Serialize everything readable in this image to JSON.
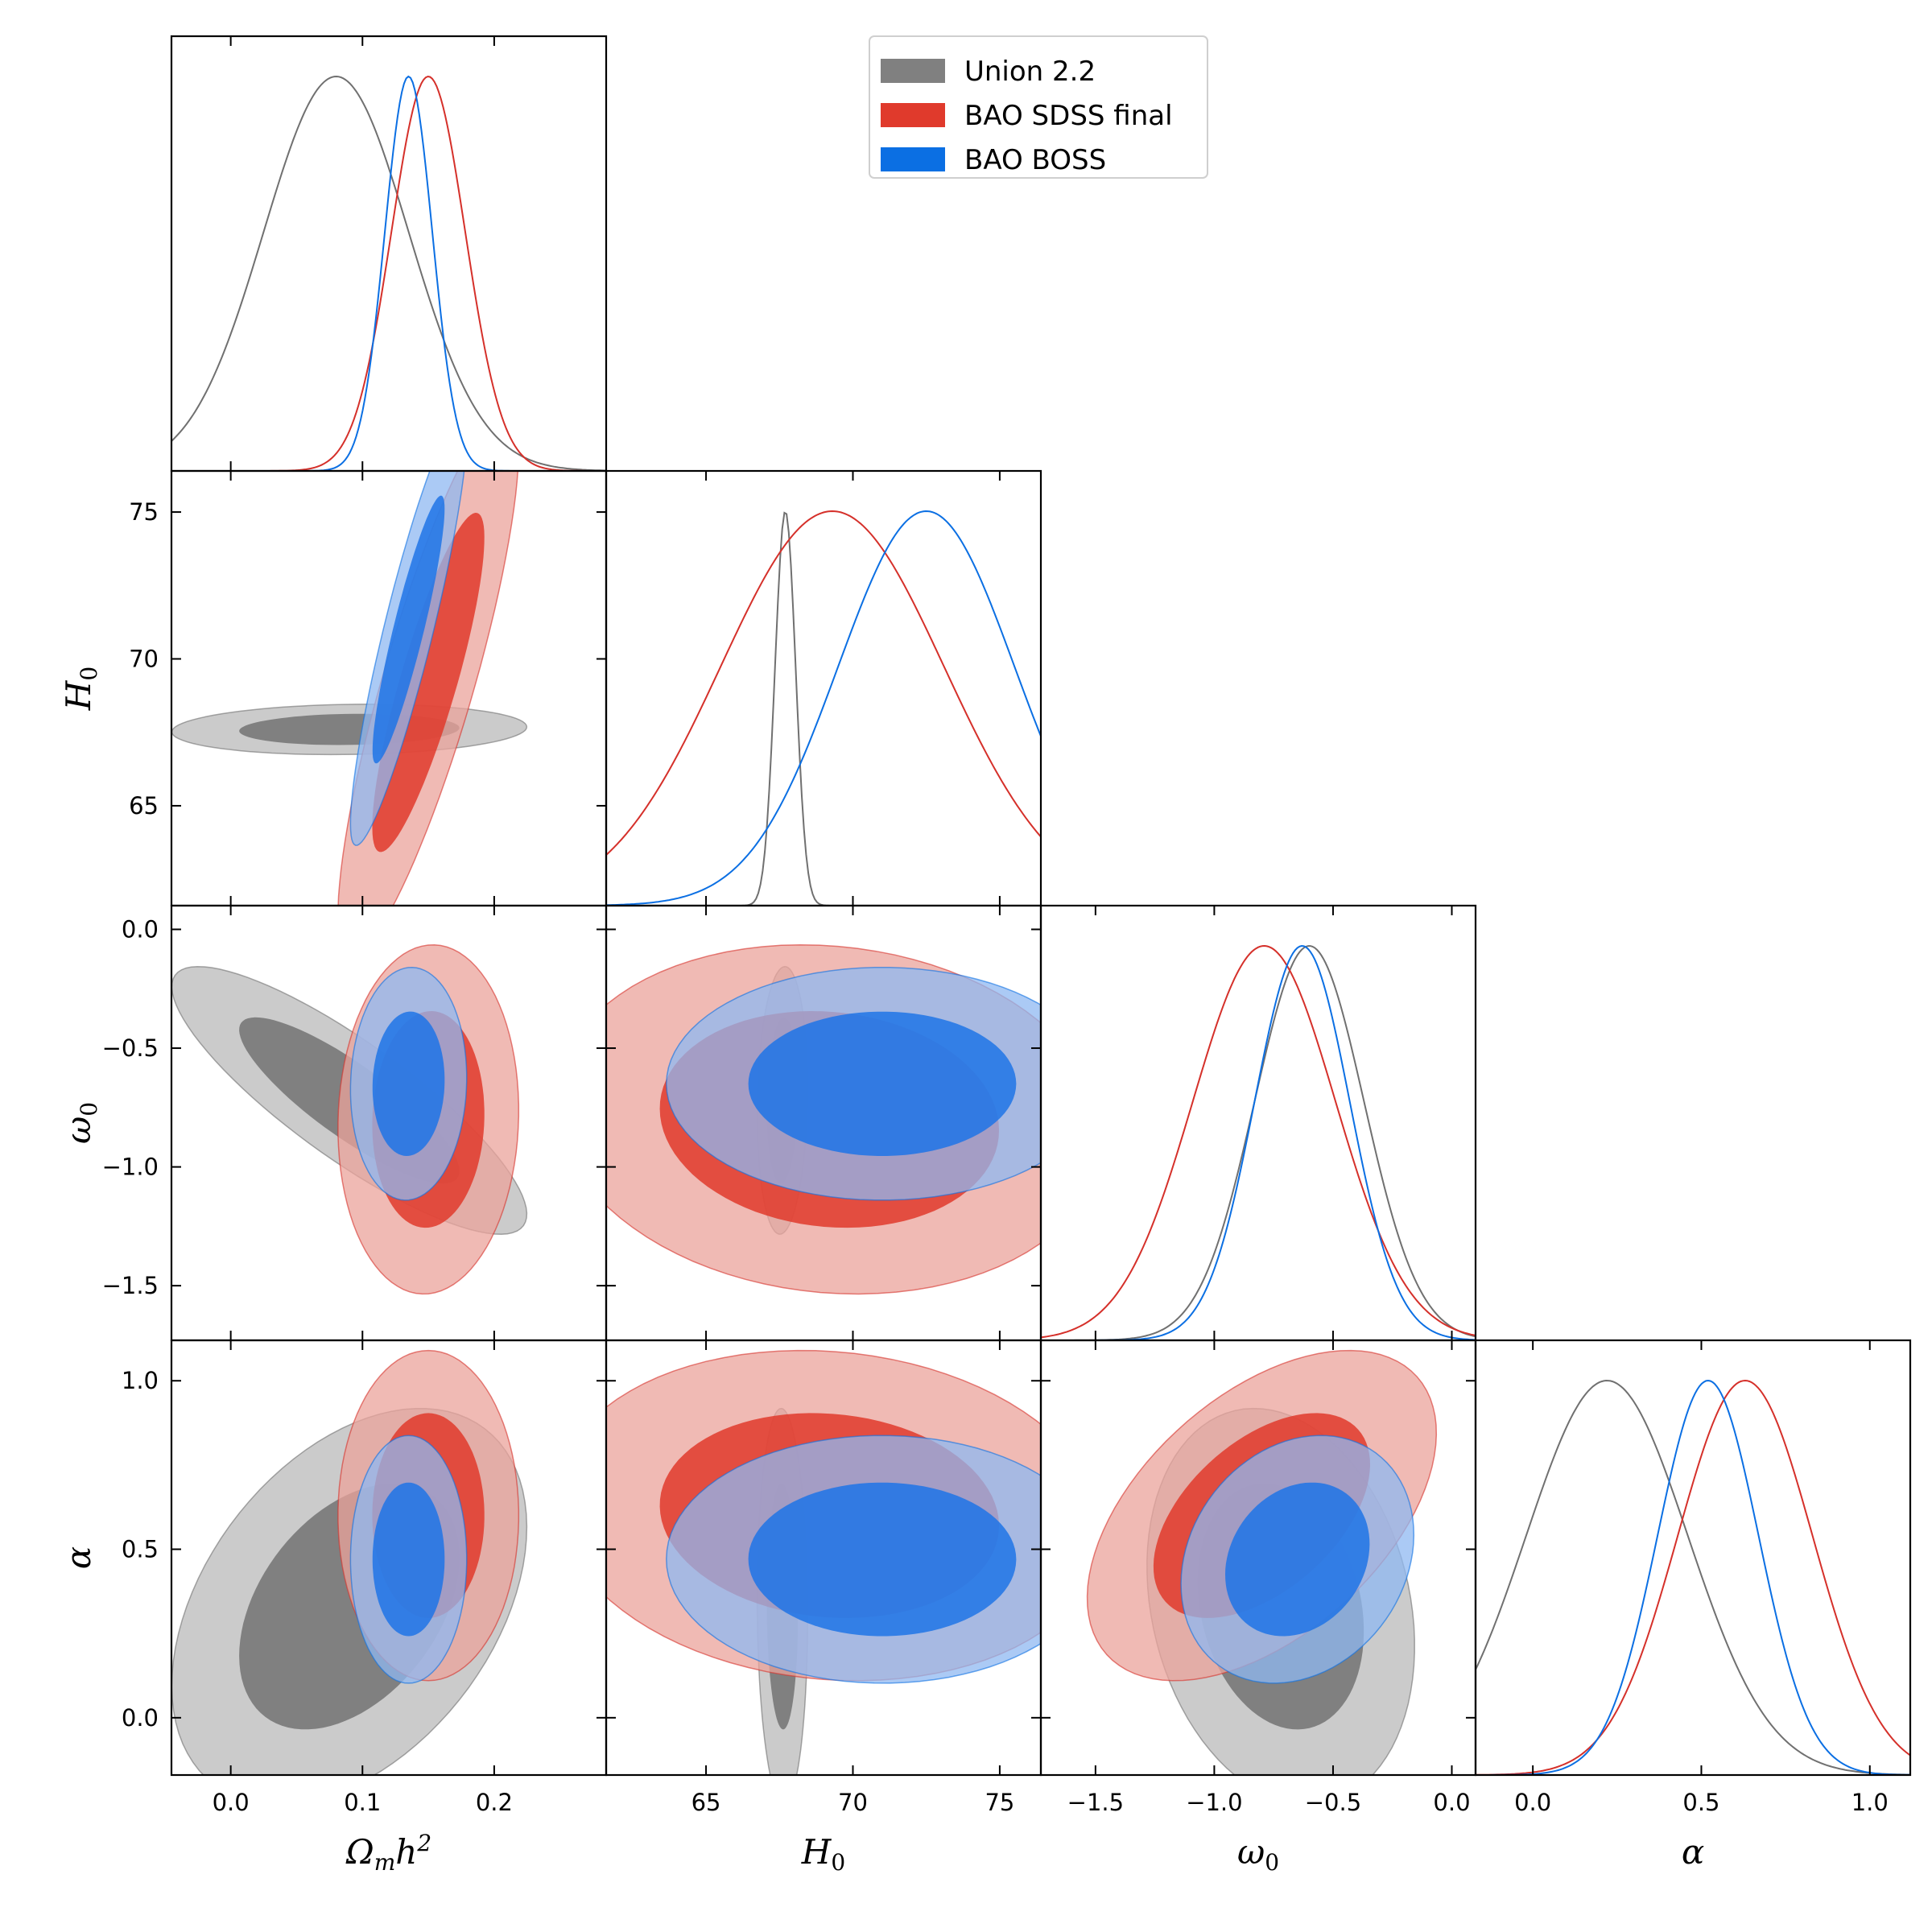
{
  "chart_data": {
    "type": "corner",
    "parameters": [
      {
        "key": "omh2",
        "label_html": "Ω<tspan font-size='28' dy='8'>m</tspan><tspan dy='-8'>h</tspan><tspan font-size='28' dy='-16'>2</tspan>",
        "label_text": "Ωmh2",
        "range": [
          -0.045,
          0.285
        ],
        "ticks": [
          0.0,
          0.1,
          0.2
        ],
        "tick_labels": [
          "0.0",
          "0.1",
          "0.2"
        ]
      },
      {
        "key": "H0",
        "label_text": "H0",
        "range": [
          61.6,
          76.4
        ],
        "ticks": [
          65,
          70,
          75
        ],
        "tick_labels": [
          "65",
          "70",
          "75"
        ]
      },
      {
        "key": "w0",
        "label_text": "ω0",
        "range": [
          -1.73,
          0.1
        ],
        "ticks": [
          -1.5,
          -1.0,
          -0.5,
          0.0
        ],
        "tick_labels": [
          "−1.5",
          "−1.0",
          "−0.5",
          "0.0"
        ]
      },
      {
        "key": "alpha",
        "label_text": "α",
        "range": [
          -0.17,
          1.12
        ],
        "ticks": [
          0.0,
          0.5,
          1.0
        ],
        "tick_labels": [
          "0.0",
          "0.5",
          "1.0"
        ]
      }
    ],
    "legend": [
      {
        "name": "Union 2.2",
        "color": "#808080"
      },
      {
        "name": "BAO SDSS final",
        "color": "#e03a2c"
      },
      {
        "name": "BAO BOSS",
        "color": "#0b6fe3"
      }
    ],
    "legend_location": "top-center",
    "series": [
      {
        "name": "Union 2.2",
        "line": "#707070",
        "inner": "#808080",
        "outer": "#cbcbcb",
        "outer_alpha": 1.0,
        "inner_alpha": 1.0,
        "means": {
          "omh2": 0.09,
          "H0": 67.6,
          "w0": -0.72,
          "alpha": 0.33
        },
        "sigmas": {
          "omh2": 0.055,
          "H0": 0.35,
          "w0": 0.23,
          "alpha": 0.24
        },
        "corr": {
          "omh2|H0": 0.1,
          "omh2|w0": -0.85,
          "omh2|alpha": 0.4,
          "H0|w0": 0.1,
          "H0|alpha": -0.05,
          "w0|alpha": -0.2
        }
      },
      {
        "name": "BAO SDSS final",
        "line": "#d5302a",
        "inner": "#e03a2c",
        "outer": "#eba39b",
        "outer_alpha": 0.75,
        "inner_alpha": 0.85,
        "means": {
          "omh2": 0.15,
          "H0": 69.2,
          "w0": -0.8,
          "alpha": 0.6
        },
        "sigmas": {
          "omh2": 0.028,
          "H0": 3.8,
          "w0": 0.3,
          "alpha": 0.2
        },
        "corr": {
          "omh2|H0": 0.85,
          "omh2|w0": 0.05,
          "omh2|alpha": 0.0,
          "H0|w0": -0.1,
          "H0|alpha": -0.1,
          "w0|alpha": 0.5
        }
      },
      {
        "name": "BAO BOSS",
        "line": "#0b6fe3",
        "inner": "#1f74e6",
        "outer": "#8fb8f2",
        "outer_alpha": 0.75,
        "inner_alpha": 0.85,
        "means": {
          "omh2": 0.135,
          "H0": 71.0,
          "w0": -0.65,
          "alpha": 0.47
        },
        "sigmas": {
          "omh2": 0.018,
          "H0": 3.0,
          "w0": 0.2,
          "alpha": 0.15
        },
        "corr": {
          "omh2|H0": 0.9,
          "omh2|w0": 0.05,
          "omh2|alpha": 0.0,
          "H0|w0": 0.0,
          "H0|alpha": 0.0,
          "w0|alpha": 0.2
        }
      }
    ],
    "marginal_peaks": {
      "omh2": {
        "Union 2.2": 0.08,
        "BAO SDSS final": 0.15,
        "BAO BOSS": 0.135
      },
      "H0": {
        "Union 2.2": 67.7,
        "BAO SDSS final": 69.3,
        "BAO BOSS": 72.5
      },
      "w0": {
        "Union 2.2": -0.6,
        "BAO SDSS final": -0.79,
        "BAO BOSS": -0.63
      },
      "alpha": {
        "Union 2.2": 0.22,
        "BAO SDSS final": 0.63,
        "BAO BOSS": 0.52
      }
    }
  }
}
